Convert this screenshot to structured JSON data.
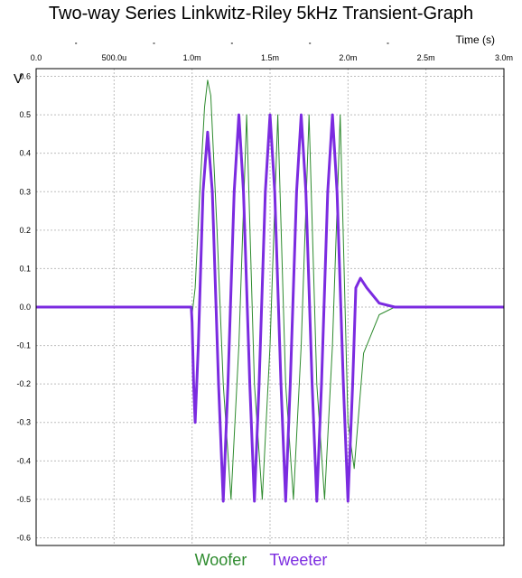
{
  "chart_data": {
    "type": "line",
    "title": "Two-way Series Linkwitz-Riley 5kHz Transient-Graph",
    "xlabel": "Time  (s)",
    "ylabel": "V",
    "xlim": [
      0,
      0.003
    ],
    "ylim": [
      -0.62,
      0.62
    ],
    "x_ticks": [
      0,
      0.0005,
      0.001,
      0.0015,
      0.002,
      0.0025,
      0.003
    ],
    "x_tick_labels": [
      "0.0",
      "500.0u",
      "1.0m",
      "1.5m",
      "2.0m",
      "2.5m",
      "3.0m"
    ],
    "y_ticks": [
      0.6,
      0.5,
      0.4,
      0.3,
      0.2,
      0.1,
      0.0,
      -0.1,
      -0.2,
      -0.3,
      -0.4,
      -0.5,
      -0.6
    ],
    "y_tick_labels": [
      "0.6",
      "0.5",
      "0.4",
      "0.3",
      "0.2",
      "0.1",
      "0.0",
      "-0.1",
      "-0.2",
      "-0.3",
      "-0.4",
      "-0.5",
      "-0.6"
    ],
    "grid": true,
    "legend_position": "bottom-center",
    "series": [
      {
        "name": "Woofer",
        "color": "#2e8b2e",
        "points": [
          [
            0,
            0
          ],
          [
            0.000995,
            0
          ],
          [
            0.001,
            -0.02
          ],
          [
            0.00102,
            0.05
          ],
          [
            0.00105,
            0.3
          ],
          [
            0.00108,
            0.52
          ],
          [
            0.0011,
            0.59
          ],
          [
            0.00112,
            0.55
          ],
          [
            0.00116,
            0.2
          ],
          [
            0.0012,
            -0.2
          ],
          [
            0.00125,
            -0.5
          ],
          [
            0.0013,
            -0.1
          ],
          [
            0.00135,
            0.5
          ],
          [
            0.0014,
            -0.2
          ],
          [
            0.00145,
            -0.5
          ],
          [
            0.0015,
            -0.1
          ],
          [
            0.00155,
            0.5
          ],
          [
            0.0016,
            -0.2
          ],
          [
            0.00165,
            -0.5
          ],
          [
            0.0017,
            -0.1
          ],
          [
            0.00175,
            0.5
          ],
          [
            0.0018,
            -0.2
          ],
          [
            0.00185,
            -0.5
          ],
          [
            0.0019,
            -0.1
          ],
          [
            0.00195,
            0.5
          ],
          [
            0.002,
            -0.3
          ],
          [
            0.00204,
            -0.42
          ],
          [
            0.0021,
            -0.12
          ],
          [
            0.0022,
            -0.02
          ],
          [
            0.0023,
            0
          ],
          [
            0.003,
            0
          ]
        ]
      },
      {
        "name": "Tweeter",
        "color": "#7b2be0",
        "points": [
          [
            0,
            0
          ],
          [
            0.000995,
            0
          ],
          [
            0.001,
            -0.04
          ],
          [
            0.00101,
            -0.2
          ],
          [
            0.00102,
            -0.3
          ],
          [
            0.00104,
            -0.1
          ],
          [
            0.00107,
            0.3
          ],
          [
            0.0011,
            0.455
          ],
          [
            0.00113,
            0.3
          ],
          [
            0.00117,
            -0.2
          ],
          [
            0.0012,
            -0.505
          ],
          [
            0.00123,
            -0.2
          ],
          [
            0.00127,
            0.3
          ],
          [
            0.0013,
            0.5
          ],
          [
            0.00133,
            0.3
          ],
          [
            0.00137,
            -0.2
          ],
          [
            0.0014,
            -0.505
          ],
          [
            0.00143,
            -0.2
          ],
          [
            0.00147,
            0.3
          ],
          [
            0.0015,
            0.5
          ],
          [
            0.00153,
            0.3
          ],
          [
            0.00157,
            -0.2
          ],
          [
            0.0016,
            -0.505
          ],
          [
            0.00163,
            -0.2
          ],
          [
            0.00167,
            0.3
          ],
          [
            0.0017,
            0.5
          ],
          [
            0.00173,
            0.3
          ],
          [
            0.00177,
            -0.2
          ],
          [
            0.0018,
            -0.505
          ],
          [
            0.00183,
            -0.2
          ],
          [
            0.00187,
            0.3
          ],
          [
            0.0019,
            0.5
          ],
          [
            0.00193,
            0.3
          ],
          [
            0.00197,
            -0.2
          ],
          [
            0.002,
            -0.505
          ],
          [
            0.00203,
            -0.2
          ],
          [
            0.00205,
            0.05
          ],
          [
            0.00208,
            0.075
          ],
          [
            0.00212,
            0.05
          ],
          [
            0.0022,
            0.01
          ],
          [
            0.0023,
            0
          ],
          [
            0.003,
            0
          ]
        ]
      }
    ]
  }
}
